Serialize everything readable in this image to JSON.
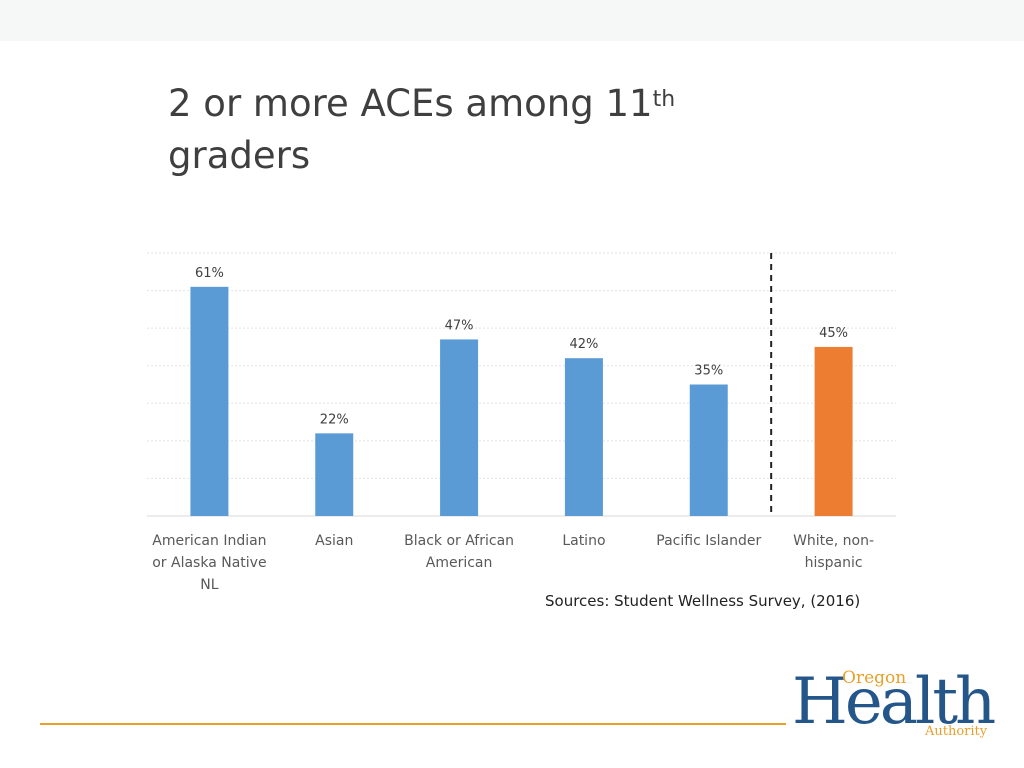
{
  "slide": {
    "title_main": "2 or more ACEs among 11",
    "title_sup": "th",
    "title_line2": "graders",
    "source": "Sources: Student Wellness Survey, (2016)"
  },
  "logo": {
    "top_word": "Oregon",
    "main_word": "Health",
    "bottom_word": "Authority"
  },
  "chart_data": {
    "type": "bar",
    "categories": [
      [
        "American Indian",
        "or Alaska Native",
        "NL"
      ],
      [
        "Asian"
      ],
      [
        "Black or African",
        "American"
      ],
      [
        "Latino"
      ],
      [
        "Pacific Islander"
      ],
      [
        "White, non-",
        "hispanic"
      ]
    ],
    "values": [
      61,
      22,
      47,
      42,
      35,
      45
    ],
    "value_labels": [
      "61%",
      "22%",
      "47%",
      "42%",
      "35%",
      "45%"
    ],
    "colors": [
      "#5b9bd5",
      "#5b9bd5",
      "#5b9bd5",
      "#5b9bd5",
      "#5b9bd5",
      "#ed7d31"
    ],
    "ylim": [
      0,
      70
    ],
    "gridlines": [
      0,
      10,
      20,
      30,
      40,
      50,
      60,
      70
    ],
    "grid": true,
    "separator_before_last": true
  }
}
